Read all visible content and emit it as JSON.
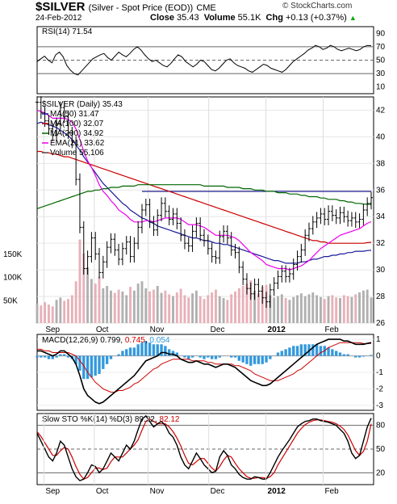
{
  "header": {
    "symbol": "$SILVER",
    "description": "(Silver - Spot Price (EOD))",
    "exchange": "CME",
    "credit": "© StockCharts.com",
    "date": "24-Feb-2012",
    "close_label": "Close",
    "close_value": "35.43",
    "volume_label": "Volume",
    "volume_value": "55.1K",
    "chg_label": "Chg",
    "chg_value": "+0.13 (+0.37%)"
  },
  "colors": {
    "price_bar": "#000000",
    "ma50": "#1a1a9a",
    "ma100": "#cc0000",
    "ma200": "#006600",
    "ema21": "#ee00ee",
    "volume_up": "#b0b0b0",
    "volume_down": "#e8b0b8",
    "macd_hist": "#3399dd",
    "resistance": "#000080"
  },
  "chart_data": [
    {
      "type": "line",
      "panel": "RSI",
      "legend": "RSI(14) 71.54",
      "ylim": [
        0,
        100
      ],
      "y_ticks": [
        "90",
        "70",
        "50",
        "30",
        "10"
      ],
      "reference_levels": [
        70,
        50,
        30
      ],
      "series": [
        {
          "name": "RSI(14)",
          "values": [
            48,
            52,
            56,
            50,
            46,
            58,
            62,
            55,
            42,
            35,
            30,
            28,
            34,
            40,
            46,
            52,
            55,
            58,
            60,
            54,
            50,
            56,
            62,
            58,
            55,
            60,
            66,
            70,
            65,
            58,
            52,
            48,
            50,
            46,
            42,
            40,
            45,
            52,
            58,
            55,
            48,
            44,
            40,
            44,
            50,
            48,
            42,
            36,
            34,
            38,
            44,
            50,
            52,
            46,
            42,
            40,
            38,
            34,
            32,
            36,
            40,
            44,
            42,
            38,
            36,
            34,
            32,
            36,
            42,
            48,
            52,
            56,
            60,
            65,
            68,
            72,
            70,
            66,
            68,
            72,
            70,
            66,
            64,
            66,
            68,
            66,
            64,
            66,
            70,
            72,
            71.54
          ]
        }
      ]
    },
    {
      "type": "bar",
      "panel": "Price",
      "legend": [
        "$SILVER (Daily) 35.43",
        "MA(50) 31.47",
        "MA(100) 32.07",
        "MA(200) 34.92",
        "EMA(21) 33.62",
        "Volume 55,106"
      ],
      "ylim": [
        26,
        43
      ],
      "y_ticks": [
        "42",
        "40",
        "38",
        "36",
        "34",
        "32",
        "30",
        "28",
        "26"
      ],
      "volume_ticks": [
        "150K",
        "100K",
        "50K"
      ],
      "x_ticks": [
        "Sep",
        "Oct",
        "Nov",
        "Dec",
        "2012",
        "Feb"
      ],
      "resistance_level": 35.9,
      "close": [
        42.6,
        41.8,
        41.2,
        40.6,
        40.1,
        41.0,
        42.2,
        41.5,
        40.3,
        39.6,
        36.8,
        33.2,
        30.1,
        31.0,
        32.4,
        31.2,
        29.8,
        30.6,
        31.7,
        32.3,
        31.5,
        30.8,
        31.6,
        32.1,
        31.0,
        32.0,
        33.2,
        34.5,
        34.9,
        33.6,
        33.0,
        34.1,
        35.0,
        34.4,
        33.8,
        34.2,
        33.5,
        32.6,
        32.0,
        31.8,
        32.9,
        33.5,
        32.6,
        32.2,
        31.6,
        31.0,
        30.9,
        32.5,
        32.9,
        32.4,
        31.5,
        31.3,
        30.2,
        29.3,
        28.6,
        28.2,
        28.9,
        28.4,
        27.9,
        27.6,
        28.5,
        29.0,
        29.5,
        29.9,
        29.5,
        29.7,
        30.4,
        31.0,
        31.5,
        32.6,
        33.1,
        33.6,
        33.9,
        34.2,
        33.8,
        34.4,
        34.1,
        33.9,
        34.3,
        34.0,
        33.7,
        33.9,
        33.6,
        33.8,
        34.5,
        35.0,
        35.43
      ],
      "series": [
        {
          "name": "MA(50)",
          "values": [
            41.0,
            41.1,
            41.0,
            40.9,
            40.8,
            40.7,
            40.5,
            40.3,
            40.1,
            39.8,
            39.4,
            39.0,
            38.5,
            38.1,
            37.7,
            37.3,
            36.9,
            36.5,
            36.2,
            35.9,
            35.6,
            35.3,
            35.0,
            34.8,
            34.5,
            34.3,
            34.1,
            33.9,
            33.8,
            33.6,
            33.5,
            33.3,
            33.2,
            33.1,
            33.0,
            32.9,
            32.8,
            32.7,
            32.6,
            32.5,
            32.4,
            32.4,
            32.3,
            32.2,
            32.2,
            32.1,
            32.0,
            32.0,
            31.9,
            31.9,
            31.8,
            31.7,
            31.6,
            31.5,
            31.4,
            31.3,
            31.2,
            31.1,
            31.0,
            30.9,
            30.8,
            30.7,
            30.7,
            30.6,
            30.5,
            30.5,
            30.5,
            30.5,
            30.6,
            30.6,
            30.7,
            30.8,
            30.8,
            30.9,
            31.0,
            31.0,
            31.1,
            31.1,
            31.2,
            31.2,
            31.3,
            31.3,
            31.4,
            31.4,
            31.4,
            31.45,
            31.47
          ]
        },
        {
          "name": "MA(100)",
          "values": [
            38.9,
            38.9,
            38.8,
            38.8,
            38.7,
            38.7,
            38.6,
            38.5,
            38.5,
            38.4,
            38.3,
            38.2,
            38.1,
            38.0,
            37.9,
            37.8,
            37.7,
            37.6,
            37.5,
            37.4,
            37.3,
            37.2,
            37.1,
            37.0,
            36.9,
            36.8,
            36.7,
            36.6,
            36.5,
            36.4,
            36.3,
            36.2,
            36.1,
            36.0,
            35.9,
            35.8,
            35.7,
            35.6,
            35.5,
            35.4,
            35.3,
            35.2,
            35.1,
            35.0,
            34.9,
            34.8,
            34.7,
            34.6,
            34.5,
            34.4,
            34.3,
            34.2,
            34.1,
            34.0,
            33.9,
            33.8,
            33.7,
            33.6,
            33.5,
            33.4,
            33.3,
            33.2,
            33.1,
            33.0,
            32.9,
            32.8,
            32.7,
            32.6,
            32.5,
            32.4,
            32.3,
            32.2,
            32.2,
            32.1,
            32.1,
            32.0,
            32.0,
            32.0,
            32.0,
            32.0,
            32.0,
            32.0,
            32.0,
            32.0,
            32.0,
            32.05,
            32.07
          ]
        },
        {
          "name": "MA(200)",
          "values": [
            34.6,
            34.7,
            34.8,
            34.9,
            35.0,
            35.1,
            35.2,
            35.3,
            35.4,
            35.5,
            35.6,
            35.7,
            35.8,
            35.9,
            35.9,
            36.0,
            36.0,
            36.1,
            36.1,
            36.2,
            36.2,
            36.2,
            36.3,
            36.3,
            36.3,
            36.3,
            36.4,
            36.4,
            36.4,
            36.4,
            36.4,
            36.4,
            36.4,
            36.4,
            36.4,
            36.4,
            36.4,
            36.4,
            36.4,
            36.4,
            36.4,
            36.4,
            36.4,
            36.3,
            36.3,
            36.3,
            36.3,
            36.3,
            36.3,
            36.2,
            36.2,
            36.2,
            36.2,
            36.1,
            36.1,
            36.1,
            36.0,
            36.0,
            36.0,
            35.9,
            35.9,
            35.9,
            35.8,
            35.8,
            35.8,
            35.7,
            35.7,
            35.7,
            35.6,
            35.6,
            35.5,
            35.5,
            35.5,
            35.4,
            35.4,
            35.3,
            35.3,
            35.3,
            35.2,
            35.2,
            35.1,
            35.1,
            35.0,
            35.0,
            34.95,
            34.93,
            34.92
          ]
        },
        {
          "name": "EMA(21)",
          "values": [
            42.0,
            41.9,
            41.8,
            41.6,
            41.4,
            41.4,
            41.4,
            41.4,
            41.3,
            41.1,
            40.6,
            39.8,
            38.9,
            38.2,
            37.7,
            37.1,
            36.4,
            35.9,
            35.6,
            35.2,
            34.9,
            34.5,
            34.3,
            34.1,
            33.8,
            33.6,
            33.6,
            33.6,
            33.7,
            33.7,
            33.6,
            33.7,
            33.8,
            33.9,
            33.9,
            33.9,
            33.9,
            33.8,
            33.6,
            33.4,
            33.4,
            33.4,
            33.3,
            33.2,
            33.0,
            32.8,
            32.6,
            32.6,
            32.6,
            32.6,
            32.5,
            32.4,
            32.2,
            31.9,
            31.6,
            31.3,
            31.1,
            30.9,
            30.7,
            30.4,
            30.3,
            30.2,
            30.1,
            30.1,
            30.1,
            30.0,
            30.1,
            30.2,
            30.3,
            30.5,
            30.7,
            31.0,
            31.3,
            31.6,
            31.8,
            32.0,
            32.2,
            32.4,
            32.6,
            32.7,
            32.8,
            32.9,
            33.0,
            33.1,
            33.3,
            33.5,
            33.62
          ]
        }
      ],
      "volume": [
        42000,
        38000,
        45000,
        40000,
        36000,
        50000,
        55000,
        48000,
        52000,
        60000,
        90000,
        180000,
        150000,
        120000,
        95000,
        85000,
        100000,
        75000,
        80000,
        70000,
        65000,
        72000,
        68000,
        60000,
        78000,
        70000,
        85000,
        90000,
        75000,
        68000,
        72000,
        80000,
        65000,
        70000,
        62000,
        58000,
        66000,
        74000,
        60000,
        55000,
        64000,
        70000,
        58000,
        52000,
        60000,
        66000,
        72000,
        58000,
        54000,
        50000,
        62000,
        68000,
        75000,
        80000,
        85000,
        92000,
        70000,
        64000,
        78000,
        82000,
        60000,
        55000,
        58000,
        62000,
        54000,
        50000,
        56000,
        60000,
        64000,
        58000,
        62000,
        66000,
        60000,
        56000,
        52000,
        58000,
        60000,
        55000,
        54000,
        60000,
        58000,
        56000,
        62000,
        66000,
        70000,
        72000,
        55106
      ]
    },
    {
      "type": "line",
      "panel": "MACD",
      "legend": "MACD(12,26,9) 0.799, 0.745, 0.054",
      "legend_values": [
        "0.799",
        "0.745",
        "0.054"
      ],
      "ylim": [
        -3.3,
        1.3
      ],
      "y_ticks": [
        "1",
        "0",
        "-1",
        "-2",
        "-3"
      ],
      "series": [
        {
          "name": "MACD",
          "values": [
            0.3,
            0.3,
            0.2,
            0.1,
            0.0,
            0.1,
            0.3,
            0.3,
            0.1,
            -0.1,
            -0.5,
            -1.2,
            -2.0,
            -2.4,
            -2.6,
            -2.8,
            -2.9,
            -2.8,
            -2.6,
            -2.4,
            -2.2,
            -2.0,
            -1.8,
            -1.6,
            -1.4,
            -1.2,
            -0.9,
            -0.6,
            -0.3,
            -0.2,
            -0.1,
            0.0,
            0.2,
            0.2,
            0.1,
            0.1,
            0.0,
            -0.2,
            -0.3,
            -0.4,
            -0.4,
            -0.3,
            -0.4,
            -0.5,
            -0.5,
            -0.6,
            -0.7,
            -0.6,
            -0.5,
            -0.5,
            -0.6,
            -0.7,
            -0.9,
            -1.1,
            -1.3,
            -1.5,
            -1.6,
            -1.7,
            -1.8,
            -1.8,
            -1.7,
            -1.5,
            -1.3,
            -1.1,
            -0.9,
            -0.7,
            -0.5,
            -0.3,
            -0.1,
            0.1,
            0.3,
            0.5,
            0.7,
            0.8,
            0.9,
            1.0,
            1.0,
            1.0,
            1.0,
            0.9,
            0.9,
            0.8,
            0.7,
            0.7,
            0.7,
            0.75,
            0.799
          ]
        },
        {
          "name": "Signal",
          "values": [
            0.4,
            0.4,
            0.3,
            0.3,
            0.2,
            0.2,
            0.2,
            0.2,
            0.2,
            0.1,
            0.0,
            -0.3,
            -0.6,
            -1.0,
            -1.3,
            -1.6,
            -1.8,
            -2.0,
            -2.1,
            -2.2,
            -2.2,
            -2.1,
            -2.1,
            -2.0,
            -1.9,
            -1.7,
            -1.6,
            -1.4,
            -1.2,
            -1.0,
            -0.8,
            -0.7,
            -0.5,
            -0.4,
            -0.3,
            -0.2,
            -0.2,
            -0.2,
            -0.2,
            -0.2,
            -0.3,
            -0.3,
            -0.3,
            -0.3,
            -0.4,
            -0.4,
            -0.5,
            -0.5,
            -0.5,
            -0.5,
            -0.5,
            -0.6,
            -0.6,
            -0.7,
            -0.8,
            -0.9,
            -1.1,
            -1.2,
            -1.3,
            -1.4,
            -1.5,
            -1.5,
            -1.5,
            -1.4,
            -1.3,
            -1.2,
            -1.1,
            -0.9,
            -0.8,
            -0.6,
            -0.4,
            -0.2,
            0.0,
            0.2,
            0.3,
            0.5,
            0.6,
            0.7,
            0.8,
            0.8,
            0.8,
            0.8,
            0.8,
            0.8,
            0.75,
            0.74,
            0.745
          ]
        }
      ],
      "histogram_name": "Histogram"
    },
    {
      "type": "line",
      "panel": "Stochastic",
      "legend": "Slow STO %K(14) %D(3) 89.22, 82.12",
      "legend_values": [
        "89.22",
        "82.12"
      ],
      "ylim": [
        5,
        95
      ],
      "y_ticks": [
        "80",
        "50",
        "20"
      ],
      "reference_levels": [
        80,
        50,
        20
      ],
      "x_ticks": [
        "Sep",
        "Oct",
        "Nov",
        "Dec",
        "2012",
        "Feb"
      ],
      "series": [
        {
          "name": "%K",
          "values": [
            70,
            60,
            50,
            40,
            35,
            45,
            60,
            55,
            40,
            25,
            15,
            10,
            12,
            20,
            30,
            28,
            20,
            25,
            35,
            45,
            40,
            35,
            45,
            55,
            50,
            60,
            75,
            88,
            92,
            85,
            78,
            82,
            85,
            80,
            70,
            65,
            55,
            40,
            30,
            25,
            35,
            45,
            38,
            30,
            25,
            20,
            22,
            40,
            48,
            42,
            30,
            25,
            18,
            14,
            12,
            12,
            15,
            14,
            12,
            12,
            20,
            30,
            40,
            48,
            55,
            62,
            70,
            78,
            82,
            85,
            86,
            88,
            88,
            86,
            85,
            84,
            82,
            80,
            75,
            70,
            60,
            45,
            38,
            42,
            60,
            78,
            89.22
          ]
        },
        {
          "name": "%D",
          "values": [
            72,
            66,
            58,
            50,
            42,
            42,
            48,
            52,
            50,
            40,
            28,
            18,
            12,
            14,
            20,
            26,
            26,
            24,
            26,
            34,
            40,
            40,
            40,
            45,
            50,
            55,
            62,
            74,
            85,
            88,
            85,
            82,
            82,
            82,
            78,
            72,
            64,
            54,
            42,
            32,
            30,
            34,
            38,
            38,
            32,
            26,
            22,
            28,
            36,
            42,
            40,
            32,
            25,
            20,
            15,
            13,
            13,
            14,
            14,
            13,
            15,
            20,
            30,
            38,
            46,
            54,
            62,
            70,
            76,
            81,
            84,
            86,
            87,
            87,
            86,
            85,
            84,
            82,
            79,
            75,
            68,
            58,
            48,
            42,
            47,
            60,
            82.12
          ]
        }
      ]
    }
  ]
}
